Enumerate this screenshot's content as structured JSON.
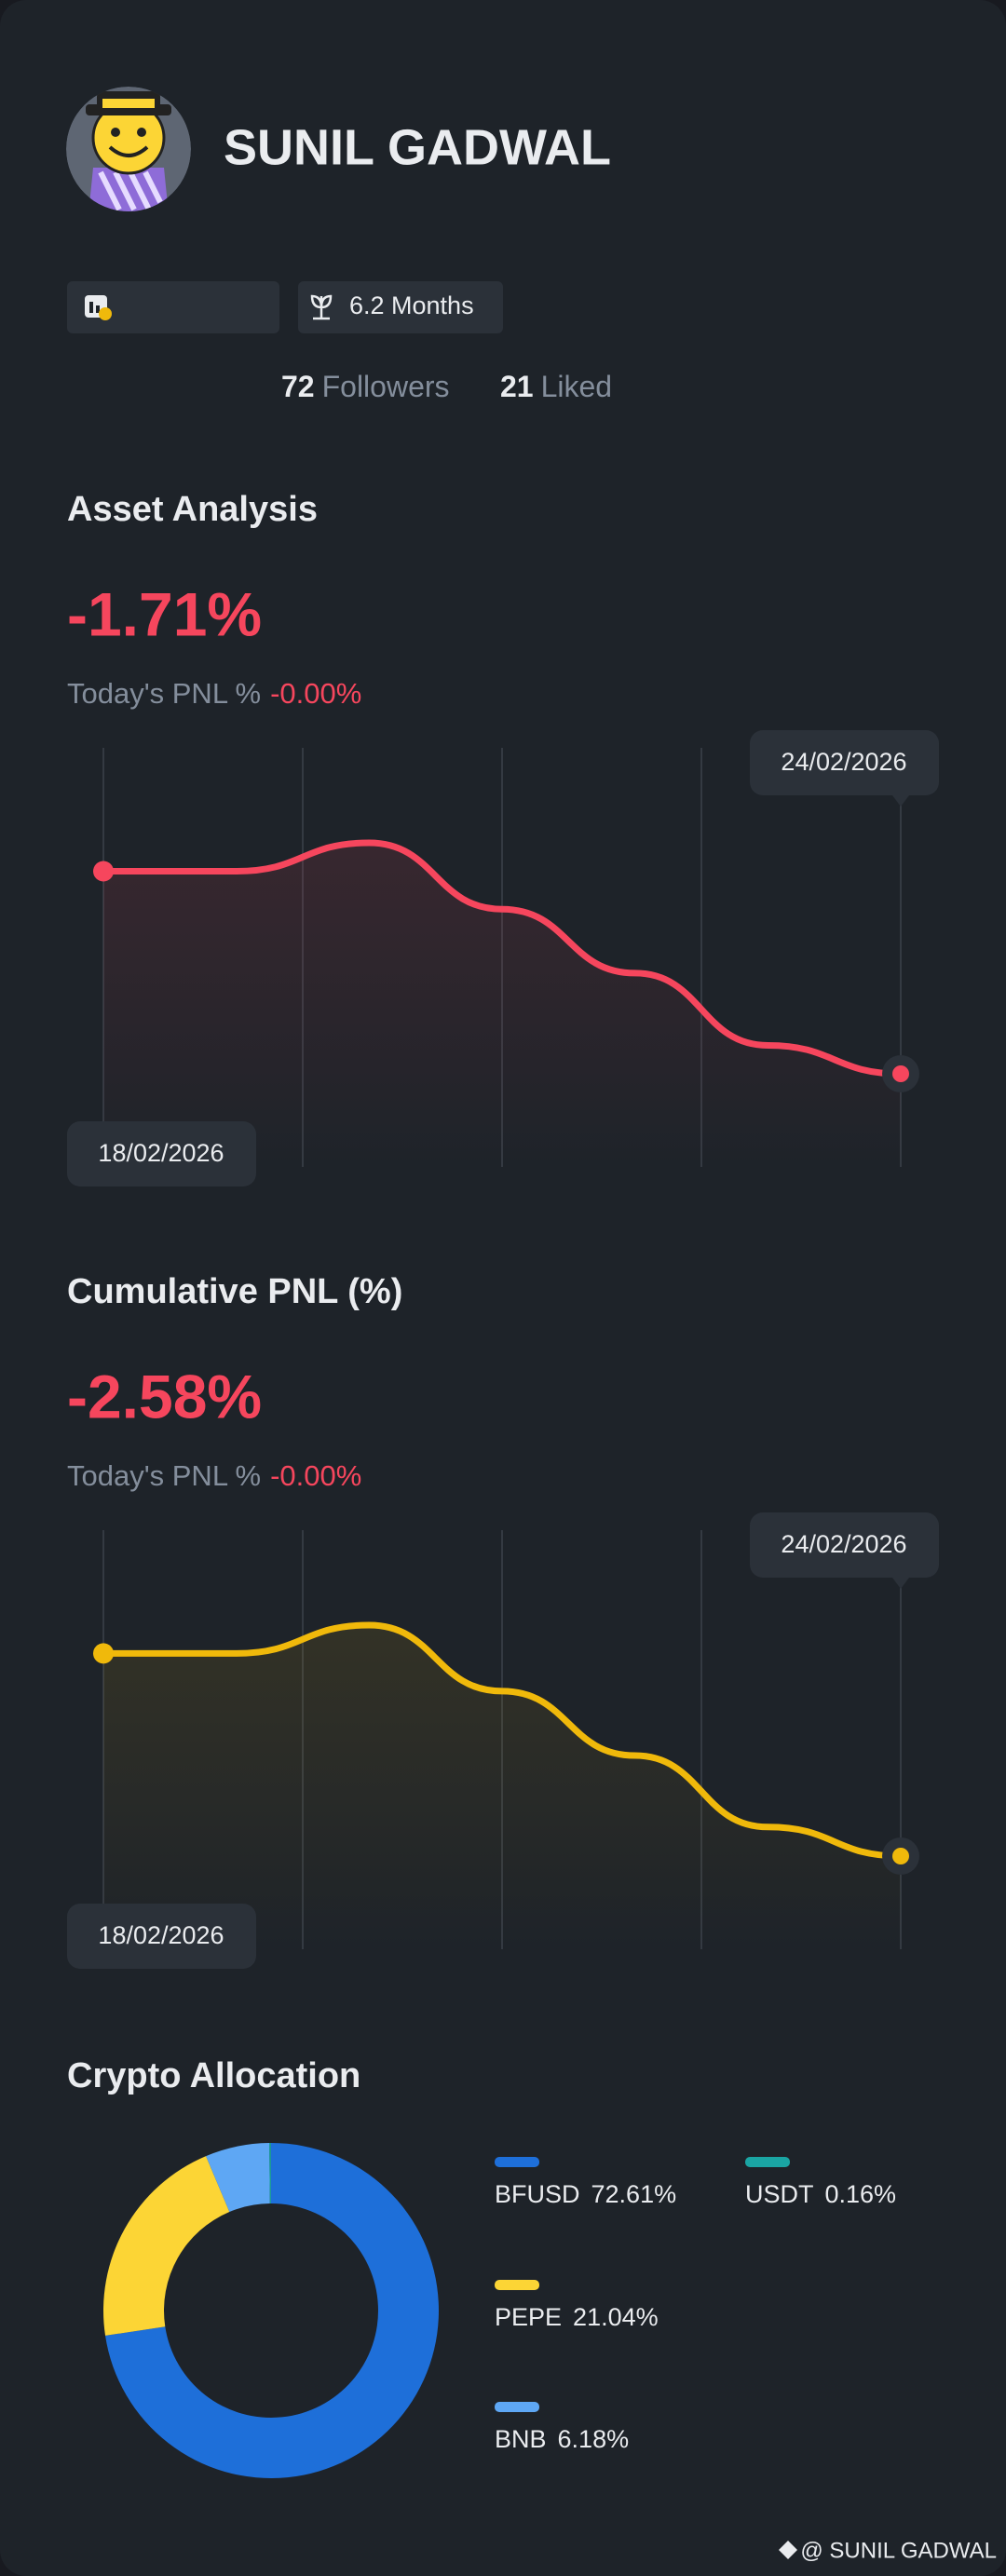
{
  "profile": {
    "name": "SUNIL GADWAL",
    "tenure": "6.2 Months",
    "followers": {
      "count": 72,
      "label": "Followers"
    },
    "liked": {
      "count": 21,
      "label": "Liked"
    }
  },
  "chart_data": [
    {
      "type": "line",
      "title": "Asset Analysis",
      "headline": "-1.71%",
      "today_label": "Today's PNL %",
      "today_value": "-0.00%",
      "categories": [
        "18/02/2026",
        null,
        null,
        null,
        null,
        null,
        "24/02/2026"
      ],
      "series": [
        {
          "color": "#f6465d",
          "values": [
            0,
            0,
            0.24,
            -0.32,
            -0.86,
            -1.47,
            -1.71
          ]
        }
      ]
    },
    {
      "type": "line",
      "title": "Cumulative PNL (%)",
      "headline": "-2.58%",
      "today_label": "Today's PNL %",
      "today_value": "-0.00%",
      "categories": [
        "18/02/2026",
        null,
        null,
        null,
        null,
        null,
        "24/02/2026"
      ],
      "series": [
        {
          "color": "#f0b90b",
          "values": [
            0,
            0,
            0.36,
            -0.48,
            -1.3,
            -2.21,
            -2.58
          ]
        }
      ]
    },
    {
      "type": "pie",
      "title": "Crypto Allocation",
      "categories": [
        "BFUSD",
        "PEPE",
        "BNB",
        "USDT"
      ],
      "values": [
        72.61,
        21.04,
        6.18,
        0.16
      ],
      "value_labels": [
        "72.61%",
        "21.04%",
        "6.18%",
        "0.16%"
      ],
      "colors": [
        "#1e6fd9",
        "#fcd535",
        "#5ea7f4",
        "#1aa5a3"
      ]
    }
  ],
  "watermark": "@ SUNIL GADWAL"
}
